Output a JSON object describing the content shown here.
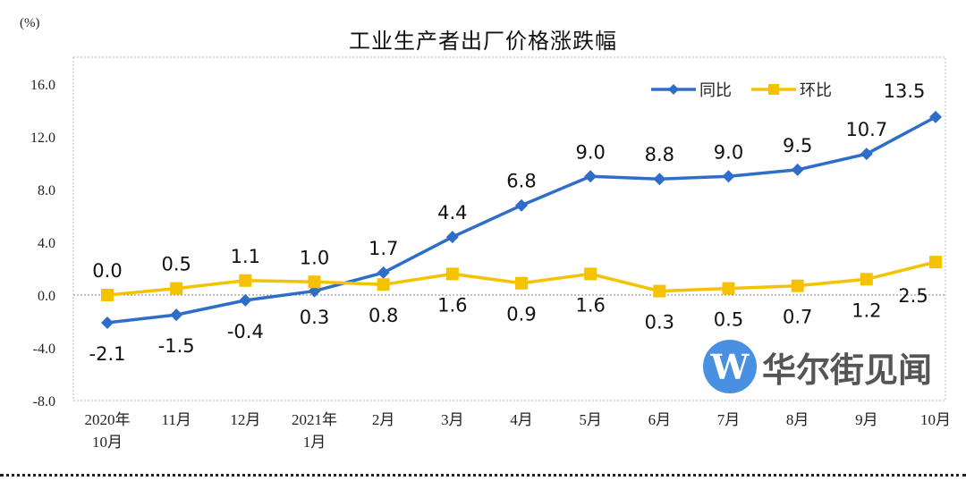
{
  "chart_data": {
    "type": "line",
    "title": "工业生产者出厂价格涨跌幅",
    "ylabel": "(%)",
    "ylim": [
      -8,
      18
    ],
    "yticks": [
      "16.0",
      "12.0",
      "8.0",
      "4.0",
      "0.0",
      "-4.0",
      "-8.0"
    ],
    "ytick_values": [
      16,
      12,
      8,
      4,
      0,
      -4,
      -8
    ],
    "categories": [
      [
        "2020年",
        "10月"
      ],
      [
        "11月"
      ],
      [
        "12月"
      ],
      [
        "2021年",
        "1月"
      ],
      [
        "2月"
      ],
      [
        "3月"
      ],
      [
        "4月"
      ],
      [
        "5月"
      ],
      [
        "6月"
      ],
      [
        "7月"
      ],
      [
        "8月"
      ],
      [
        "9月"
      ],
      [
        "10月"
      ]
    ],
    "legend_position": "top-right",
    "series": [
      {
        "name": "同比",
        "color": "#2f6ec8",
        "marker": "diamond",
        "values": [
          -2.1,
          -1.5,
          -0.4,
          0.3,
          1.7,
          4.4,
          6.8,
          9.0,
          8.8,
          9.0,
          9.5,
          10.7,
          13.5
        ],
        "labels": [
          "-2.1",
          "-1.5",
          "-0.4",
          "0.3",
          "1.7",
          "4.4",
          "6.8",
          "9.0",
          "8.8",
          "9.0",
          "9.5",
          "10.7",
          "13.5"
        ]
      },
      {
        "name": "环比",
        "color": "#f5c200",
        "marker": "square",
        "values": [
          0.0,
          0.5,
          1.1,
          1.0,
          0.8,
          1.6,
          0.9,
          1.6,
          0.3,
          0.5,
          0.7,
          1.2,
          2.5
        ],
        "labels": [
          "0.0",
          "0.5",
          "1.1",
          "1.0",
          "0.8",
          "1.6",
          "0.9",
          "1.6",
          "0.3",
          "0.5",
          "0.7",
          "1.2",
          "2.5"
        ]
      }
    ]
  },
  "watermark": {
    "logo": "W",
    "text": "华尔街见闻"
  }
}
